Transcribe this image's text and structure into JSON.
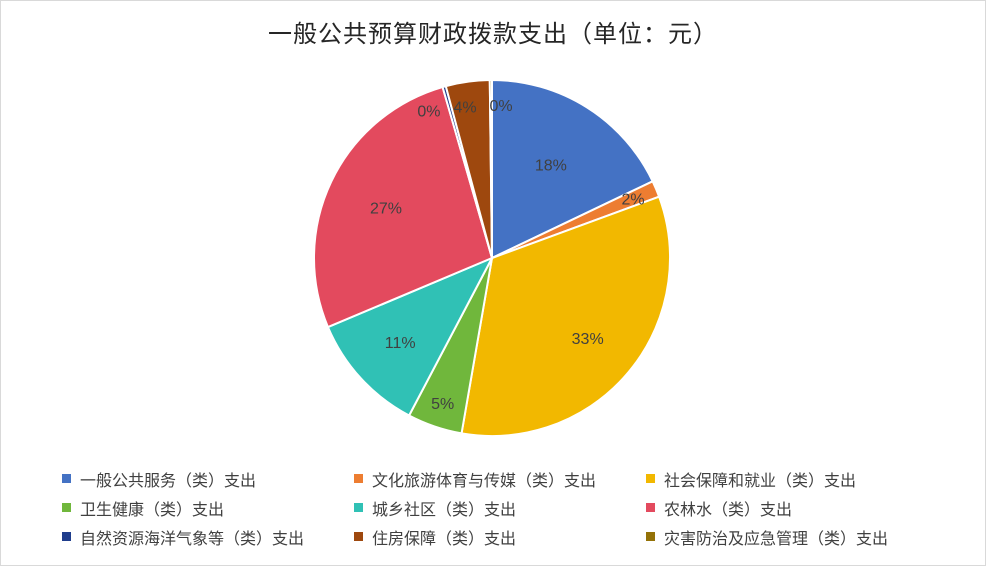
{
  "chart_data": {
    "type": "pie",
    "title": "一般公共预算财政拨款支出（单位：元）",
    "categories": [
      "一般公共服务（类）支出",
      "文化旅游体育与传媒（类）支出",
      "社会保障和就业（类）支出",
      "卫生健康（类）支出",
      "城乡社区（类）支出",
      "农林水（类）支出",
      "自然资源海洋气象等（类）支出",
      "住房保障（类）支出",
      "灾害防治及应急管理（类）支出"
    ],
    "values": [
      18,
      1.5,
      33.5,
      5,
      11,
      27,
      0.3,
      4,
      0.2
    ],
    "data_labels": [
      "18%",
      "2%",
      "33%",
      "5%",
      "11%",
      "27%",
      "0%",
      "4%",
      "0%"
    ],
    "colors": [
      "#4472C4",
      "#ED7D31",
      "#F2B800",
      "#70B73C",
      "#30C1B5",
      "#E34A5E",
      "#1F3D8C",
      "#9E480E",
      "#947207"
    ],
    "legend_position": "bottom"
  }
}
